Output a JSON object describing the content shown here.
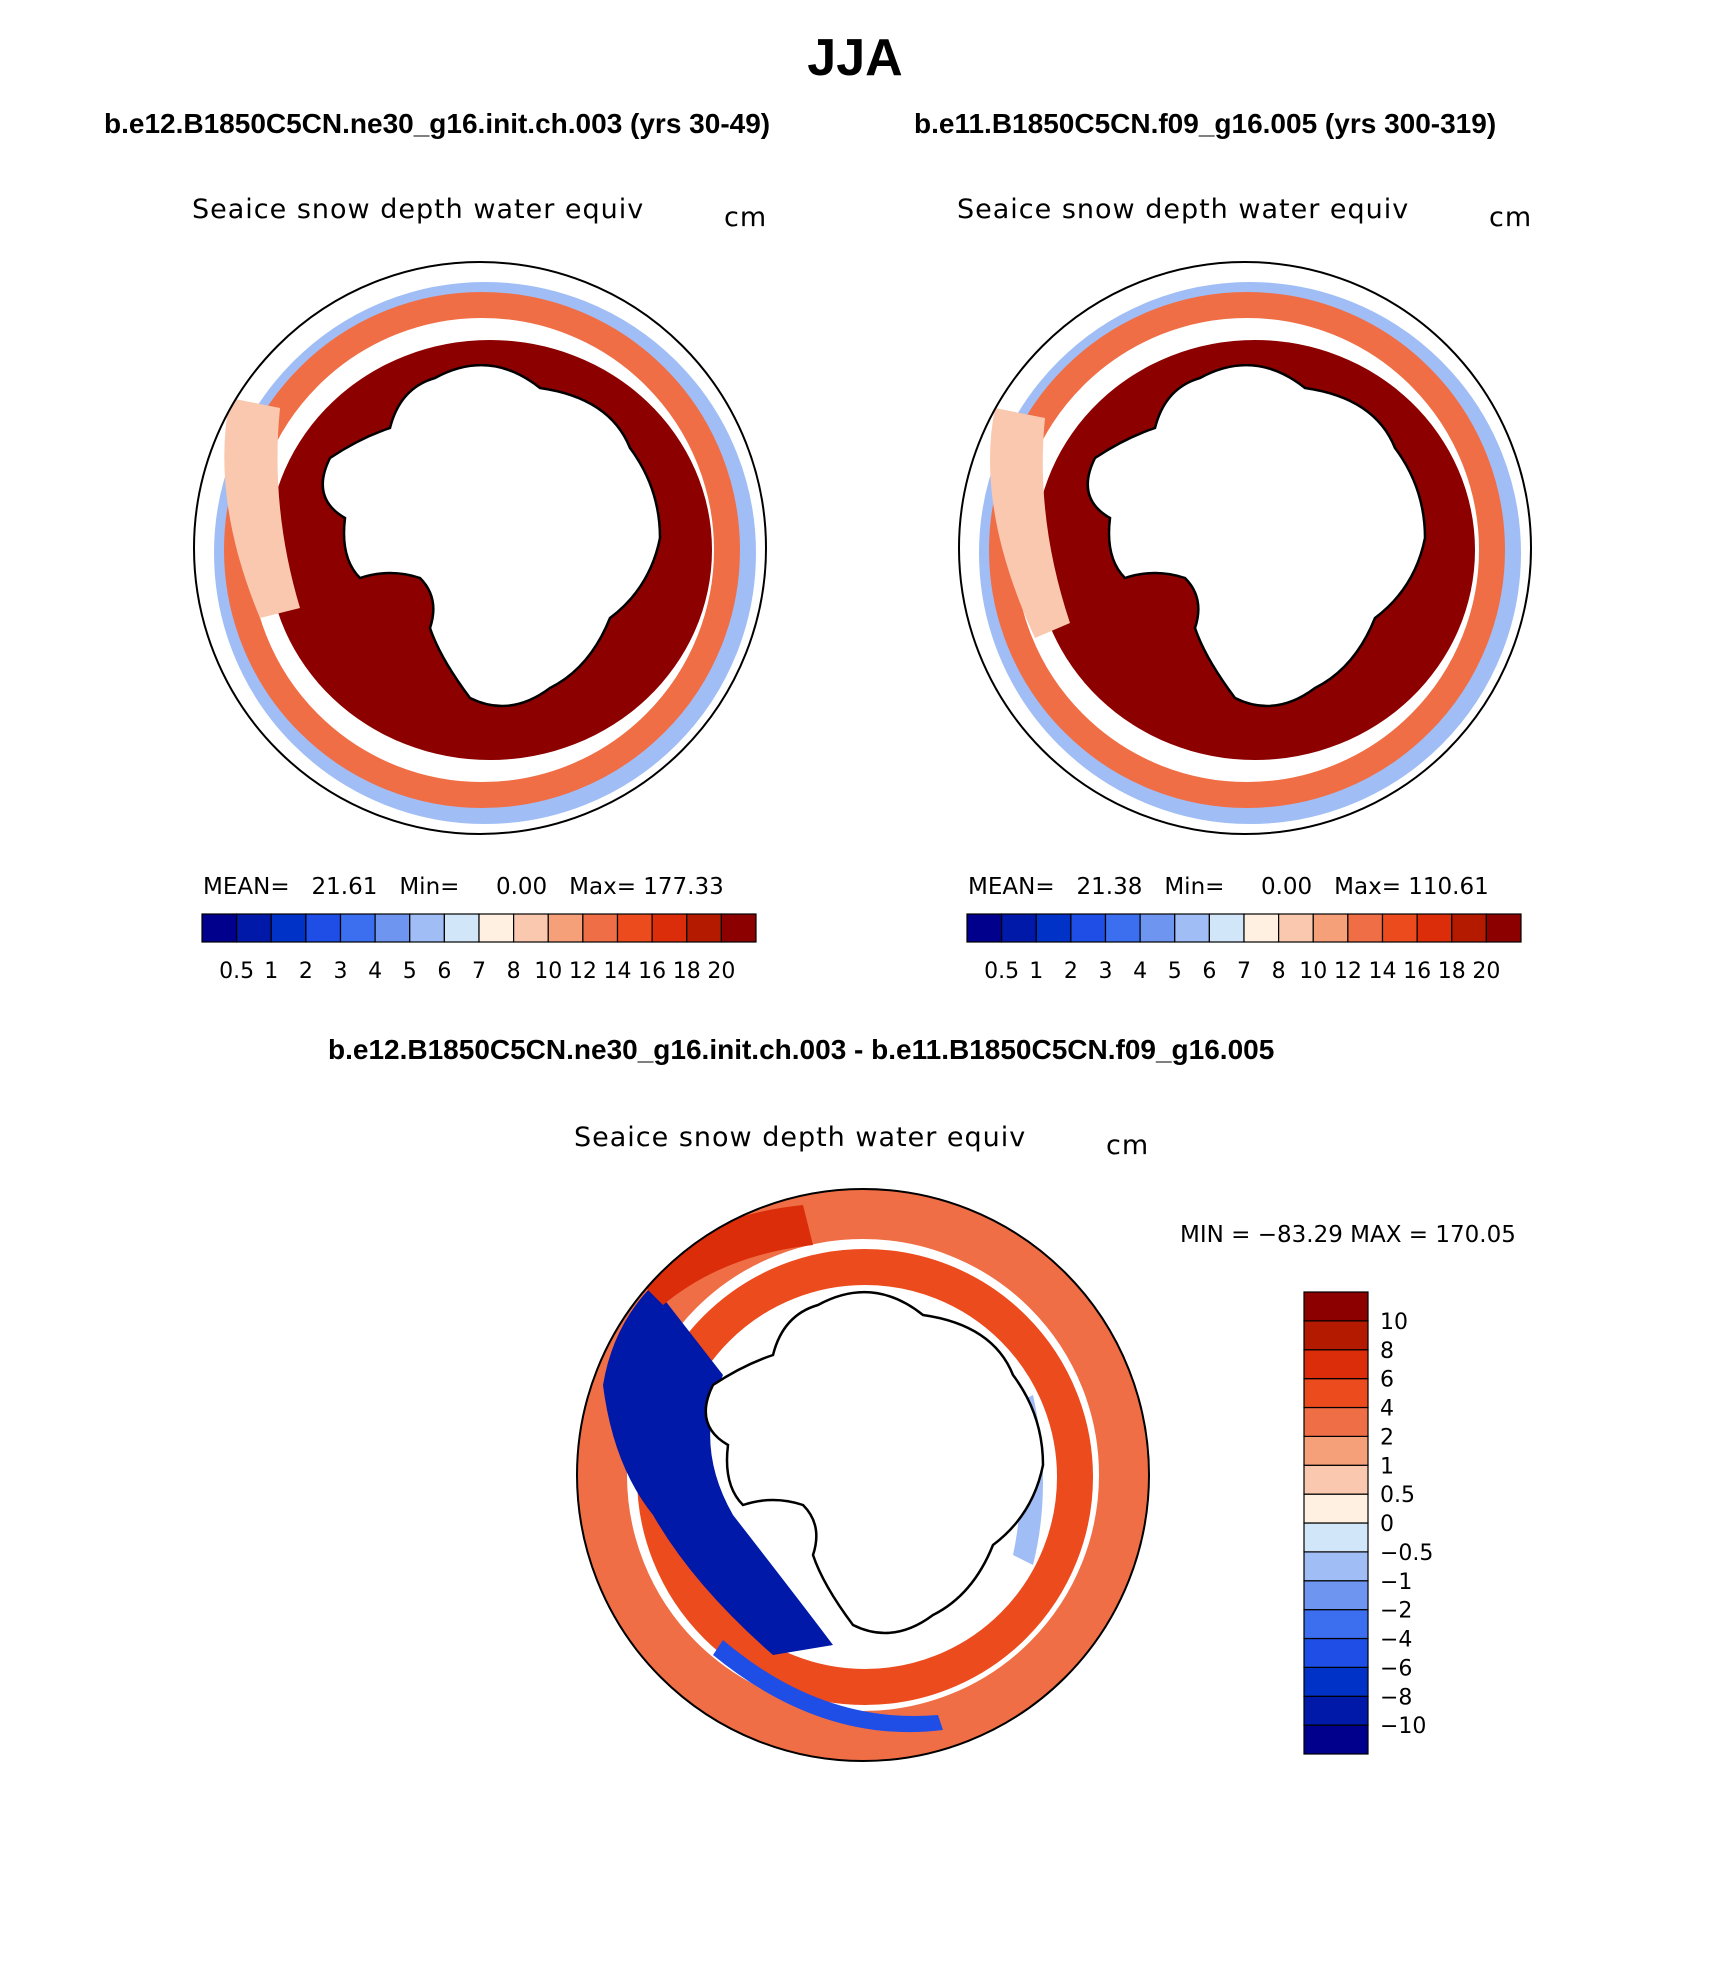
{
  "title": "JJA",
  "panels": [
    {
      "case": "b.e12.B1850C5CN.ne30_g16.init.ch.003 (yrs 30-49)",
      "variable": "Seaice snow depth water equiv",
      "units": "cm",
      "stats": {
        "mean_label": "MEAN=",
        "mean": "21.61",
        "min_label": "Min=",
        "min": "0.00",
        "max_label": "Max=",
        "max": "177.33"
      }
    },
    {
      "case": "b.e11.B1850C5CN.f09_g16.005 (yrs 300-319)",
      "variable": "Seaice snow depth water equiv",
      "units": "cm",
      "stats": {
        "mean_label": "MEAN=",
        "mean": "21.38",
        "min_label": "Min=",
        "min": "0.00",
        "max_label": "Max=",
        "max": "110.61"
      }
    }
  ],
  "diff": {
    "case": "b.e12.B1850C5CN.ne30_g16.init.ch.003 - b.e11.B1850C5CN.f09_g16.005",
    "variable": "Seaice snow depth water equiv",
    "units": "cm",
    "minmax": "MIN = −83.29 MAX = 170.05"
  },
  "chart_data": [
    {
      "type": "heatmap",
      "projection": "south-polar-stereographic",
      "title": "Seaice snow depth water equiv",
      "units": "cm",
      "levels": [
        "0.5",
        "1",
        "2",
        "3",
        "4",
        "5",
        "6",
        "7",
        "8",
        "10",
        "12",
        "14",
        "16",
        "18",
        "20"
      ],
      "colors": [
        "#00008c",
        "#0019a8",
        "#0032c8",
        "#1e4ee6",
        "#3c6ef0",
        "#6e96f0",
        "#a0bef5",
        "#d2e6fa",
        "#fff0e1",
        "#fac8af",
        "#f5a078",
        "#f06e46",
        "#ec4b1e",
        "#dc2d0a",
        "#b41a00",
        "#8c0000"
      ],
      "colorbar": "horizontal-bottom",
      "mean": 21.61,
      "min": 0.0,
      "max": 177.33
    },
    {
      "type": "heatmap",
      "projection": "south-polar-stereographic",
      "title": "Seaice snow depth water equiv",
      "units": "cm",
      "levels": [
        "0.5",
        "1",
        "2",
        "3",
        "4",
        "5",
        "6",
        "7",
        "8",
        "10",
        "12",
        "14",
        "16",
        "18",
        "20"
      ],
      "colors": [
        "#00008c",
        "#0019a8",
        "#0032c8",
        "#1e4ee6",
        "#3c6ef0",
        "#6e96f0",
        "#a0bef5",
        "#d2e6fa",
        "#fff0e1",
        "#fac8af",
        "#f5a078",
        "#f06e46",
        "#ec4b1e",
        "#dc2d0a",
        "#b41a00",
        "#8c0000"
      ],
      "colorbar": "horizontal-bottom",
      "mean": 21.38,
      "min": 0.0,
      "max": 110.61
    },
    {
      "type": "heatmap",
      "projection": "south-polar-stereographic",
      "title": "Seaice snow depth water equiv",
      "units": "cm",
      "levels": [
        "−10",
        "−8",
        "−6",
        "−4",
        "−2",
        "−1",
        "−0.5",
        "0",
        "0.5",
        "1",
        "2",
        "4",
        "6",
        "8",
        "10"
      ],
      "colors": [
        "#00008c",
        "#0019a8",
        "#0032c8",
        "#1e4ee6",
        "#3c6ef0",
        "#6e96f0",
        "#a0bef5",
        "#d2e6fa",
        "#fff0e1",
        "#fac8af",
        "#f5a078",
        "#f06e46",
        "#ec4b1e",
        "#dc2d0a",
        "#b41a00",
        "#8c0000"
      ],
      "colorbar": "vertical-right",
      "min": -83.29,
      "max": 170.05
    }
  ]
}
